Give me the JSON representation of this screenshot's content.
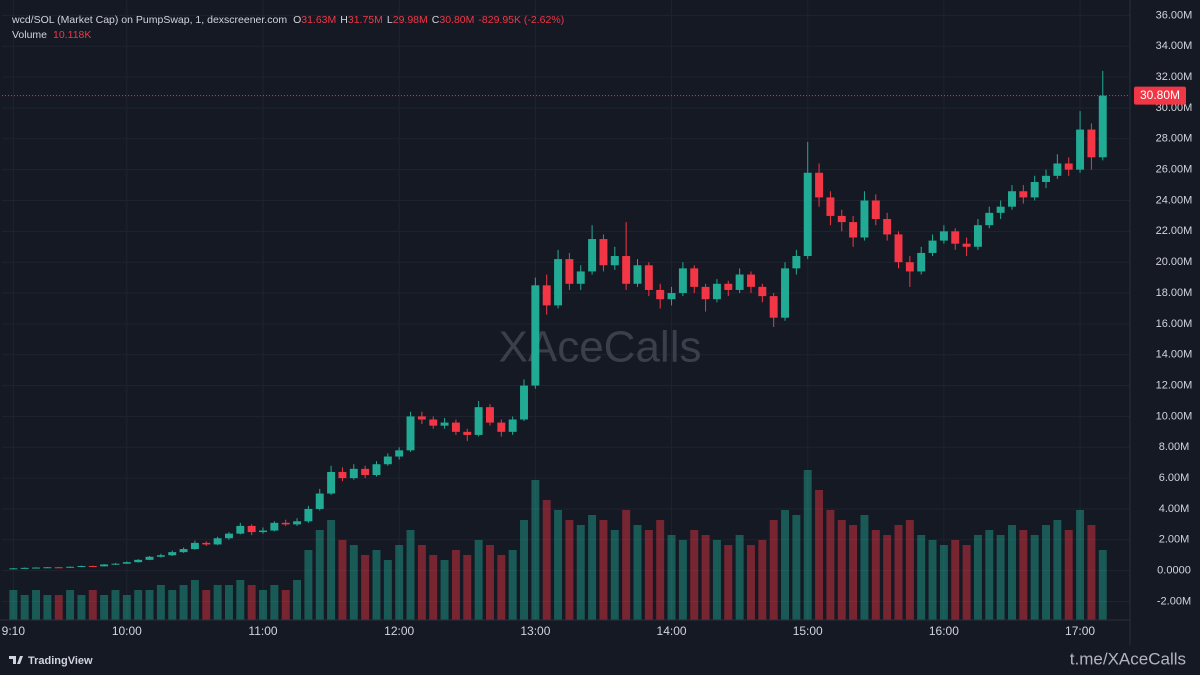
{
  "chart_data": {
    "type": "candlestick",
    "header": {
      "pair": "wcd/SOL (Market Cap) on PumpSwap, 1, dexscreener.com",
      "ohlc": [
        {
          "key": "O",
          "text": "31.63M"
        },
        {
          "key": "H",
          "text": "31.75M"
        },
        {
          "key": "L",
          "text": "29.98M"
        },
        {
          "key": "C",
          "text": "30.80M"
        }
      ],
      "change": "-829.95K (-2.62%)",
      "volume_label": "Volume",
      "volume_value": "10.118K"
    },
    "x": [
      550,
      555,
      560,
      565,
      570,
      575,
      580,
      585,
      590,
      595,
      600,
      605,
      610,
      615,
      620,
      625,
      630,
      635,
      640,
      645,
      650,
      655,
      660,
      665,
      670,
      675,
      680,
      685,
      690,
      695,
      700,
      705,
      710,
      715,
      720,
      725,
      730,
      735,
      740,
      745,
      750,
      755,
      760,
      765,
      770,
      775,
      780,
      785,
      790,
      795,
      800,
      805,
      810,
      815,
      820,
      825,
      830,
      835,
      840,
      845,
      850,
      855,
      860,
      865,
      870,
      875,
      880,
      885,
      890,
      895,
      900,
      905,
      910,
      915,
      920,
      925,
      930,
      935,
      940,
      945,
      950,
      955,
      960,
      965,
      970,
      975,
      980,
      985,
      990,
      995,
      1000,
      1005,
      1010,
      1015,
      1020,
      1025,
      1030
    ],
    "open": [
      0.12,
      0.15,
      0.18,
      0.2,
      0.22,
      0.2,
      0.25,
      0.3,
      0.28,
      0.4,
      0.45,
      0.55,
      0.7,
      0.9,
      1.0,
      1.2,
      1.4,
      1.8,
      1.7,
      2.1,
      2.4,
      2.9,
      2.5,
      2.6,
      3.1,
      3.0,
      3.2,
      4.0,
      5.0,
      6.4,
      6.0,
      6.6,
      6.2,
      6.9,
      7.4,
      7.8,
      10.0,
      9.8,
      9.4,
      9.6,
      9.0,
      8.8,
      10.6,
      9.6,
      9.0,
      9.8,
      12.0,
      18.5,
      17.2,
      20.2,
      18.6,
      19.4,
      21.5,
      19.8,
      20.4,
      18.6,
      19.8,
      18.2,
      17.6,
      18.0,
      19.6,
      18.4,
      17.6,
      18.6,
      18.2,
      19.2,
      18.4,
      17.8,
      16.4,
      19.6,
      20.4,
      25.8,
      24.2,
      23.0,
      22.6,
      21.6,
      24.0,
      22.8,
      21.8,
      20.0,
      19.4,
      20.6,
      21.4,
      22.0,
      21.2,
      21.0,
      22.4,
      23.2,
      23.6,
      24.6,
      24.2,
      25.2,
      25.6,
      26.4,
      26.0,
      28.6,
      26.8
    ],
    "high": [
      0.17,
      0.2,
      0.22,
      0.24,
      0.24,
      0.27,
      0.33,
      0.32,
      0.43,
      0.5,
      0.6,
      0.75,
      0.95,
      1.1,
      1.3,
      1.5,
      1.95,
      1.9,
      2.2,
      2.5,
      3.1,
      3.0,
      2.8,
      3.2,
      3.3,
      3.4,
      4.2,
      5.3,
      6.8,
      6.7,
      6.9,
      6.8,
      7.1,
      7.6,
      8.0,
      10.3,
      10.3,
      10.0,
      9.9,
      9.8,
      9.2,
      11.0,
      10.8,
      9.8,
      10.0,
      12.4,
      19.0,
      19.2,
      20.8,
      20.6,
      19.8,
      22.4,
      21.8,
      21.0,
      22.6,
      20.2,
      20.0,
      18.6,
      18.4,
      20.0,
      19.8,
      18.6,
      18.9,
      18.8,
      19.6,
      19.4,
      18.6,
      18.0,
      20.0,
      20.8,
      27.8,
      26.4,
      24.6,
      23.4,
      23.0,
      24.6,
      24.4,
      23.2,
      22.0,
      20.4,
      21.0,
      21.8,
      22.4,
      22.2,
      21.6,
      22.8,
      23.6,
      24.0,
      25.0,
      25.0,
      25.6,
      26.0,
      27.0,
      26.8,
      29.8,
      29.0,
      32.4
    ],
    "low": [
      0.1,
      0.14,
      0.17,
      0.19,
      0.18,
      0.19,
      0.24,
      0.26,
      0.27,
      0.38,
      0.44,
      0.52,
      0.68,
      0.85,
      0.95,
      1.15,
      1.35,
      1.6,
      1.65,
      2.0,
      2.35,
      2.3,
      2.4,
      2.55,
      2.9,
      2.9,
      3.1,
      3.9,
      4.9,
      5.8,
      5.9,
      6.0,
      6.1,
      6.8,
      7.2,
      7.7,
      9.5,
      9.2,
      9.2,
      8.8,
      8.4,
      8.7,
      9.4,
      8.7,
      8.8,
      9.7,
      11.8,
      16.6,
      17.0,
      18.2,
      18.2,
      19.2,
      19.4,
      19.5,
      18.2,
      18.4,
      17.8,
      17.0,
      17.2,
      17.8,
      18.0,
      16.8,
      17.4,
      17.8,
      18.0,
      18.0,
      17.4,
      15.8,
      16.2,
      19.2,
      20.2,
      23.6,
      22.4,
      22.0,
      21.0,
      21.4,
      22.4,
      21.4,
      19.6,
      18.4,
      19.2,
      20.4,
      21.2,
      20.8,
      20.4,
      20.8,
      22.2,
      22.8,
      23.4,
      23.8,
      24.0,
      24.8,
      25.4,
      25.6,
      25.8,
      26.0,
      26.6
    ],
    "close": [
      0.15,
      0.18,
      0.2,
      0.22,
      0.2,
      0.25,
      0.3,
      0.28,
      0.4,
      0.45,
      0.55,
      0.7,
      0.9,
      1.0,
      1.2,
      1.4,
      1.8,
      1.7,
      2.1,
      2.4,
      2.9,
      2.5,
      2.6,
      3.1,
      3.0,
      3.2,
      4.0,
      5.0,
      6.4,
      6.0,
      6.6,
      6.2,
      6.9,
      7.4,
      7.8,
      10.0,
      9.8,
      9.4,
      9.6,
      9.0,
      8.8,
      10.6,
      9.6,
      9.0,
      9.8,
      12.0,
      18.5,
      17.2,
      20.2,
      18.6,
      19.4,
      21.5,
      19.8,
      20.4,
      18.6,
      19.8,
      18.2,
      17.6,
      18.0,
      19.6,
      18.4,
      17.6,
      18.6,
      18.2,
      19.2,
      18.4,
      17.8,
      16.4,
      19.6,
      20.4,
      25.8,
      24.2,
      23.0,
      22.6,
      21.6,
      24.0,
      22.8,
      21.8,
      20.0,
      19.4,
      20.6,
      21.4,
      22.0,
      21.2,
      21.0,
      22.4,
      23.2,
      23.6,
      24.6,
      24.2,
      25.2,
      25.6,
      26.4,
      26.0,
      28.6,
      26.8,
      30.8
    ],
    "volume": [
      6,
      5,
      6,
      5,
      5,
      6,
      5,
      6,
      5,
      6,
      5,
      6,
      6,
      7,
      6,
      7,
      8,
      6,
      7,
      7,
      8,
      7,
      6,
      7,
      6,
      8,
      14,
      18,
      20,
      16,
      15,
      13,
      14,
      12,
      15,
      18,
      15,
      13,
      12,
      14,
      13,
      16,
      15,
      13,
      14,
      20,
      28,
      24,
      22,
      20,
      19,
      21,
      20,
      18,
      22,
      19,
      18,
      20,
      17,
      16,
      18,
      17,
      16,
      15,
      17,
      15,
      16,
      20,
      22,
      21,
      30,
      26,
      22,
      20,
      19,
      21,
      18,
      17,
      19,
      20,
      17,
      16,
      15,
      16,
      15,
      17,
      18,
      17,
      19,
      18,
      17,
      19,
      20,
      18,
      22,
      19,
      14
    ],
    "up_color": "#22ab94",
    "down_color": "#f23645",
    "xlim": [
      545,
      1042
    ],
    "xticks": [
      {
        "value": 550,
        "label": "9:10"
      },
      {
        "value": 600,
        "label": "10:00"
      },
      {
        "value": 660,
        "label": "11:00"
      },
      {
        "value": 720,
        "label": "12:00"
      },
      {
        "value": 780,
        "label": "13:00"
      },
      {
        "value": 840,
        "label": "14:00"
      },
      {
        "value": 900,
        "label": "15:00"
      },
      {
        "value": 960,
        "label": "16:00"
      },
      {
        "value": 1020,
        "label": "17:00"
      }
    ],
    "ylim": [
      -3.2,
      37
    ],
    "yticks": [
      {
        "value": -2,
        "label": "-2.00M"
      },
      {
        "value": 0,
        "label": "0.0000"
      },
      {
        "value": 2,
        "label": "2.00M"
      },
      {
        "value": 4,
        "label": "4.00M"
      },
      {
        "value": 6,
        "label": "6.00M"
      },
      {
        "value": 8,
        "label": "8.00M"
      },
      {
        "value": 10,
        "label": "10.00M"
      },
      {
        "value": 12,
        "label": "12.00M"
      },
      {
        "value": 14,
        "label": "14.00M"
      },
      {
        "value": 16,
        "label": "16.00M"
      },
      {
        "value": 18,
        "label": "18.00M"
      },
      {
        "value": 20,
        "label": "20.00M"
      },
      {
        "value": 22,
        "label": "22.00M"
      },
      {
        "value": 24,
        "label": "24.00M"
      },
      {
        "value": 26,
        "label": "26.00M"
      },
      {
        "value": 28,
        "label": "28.00M"
      },
      {
        "value": 30,
        "label": "30.00M"
      },
      {
        "value": 32,
        "label": "32.00M"
      },
      {
        "value": 34,
        "label": "34.00M"
      },
      {
        "value": 36,
        "label": "36.00M"
      }
    ],
    "vlim": [
      0,
      40
    ],
    "grid": true,
    "last_price": {
      "value": 30.8,
      "label": "30.80M"
    }
  },
  "watermark": "XAceCalls",
  "footer": {
    "brand": "TradingView",
    "link": "t.me/XAceCalls"
  }
}
